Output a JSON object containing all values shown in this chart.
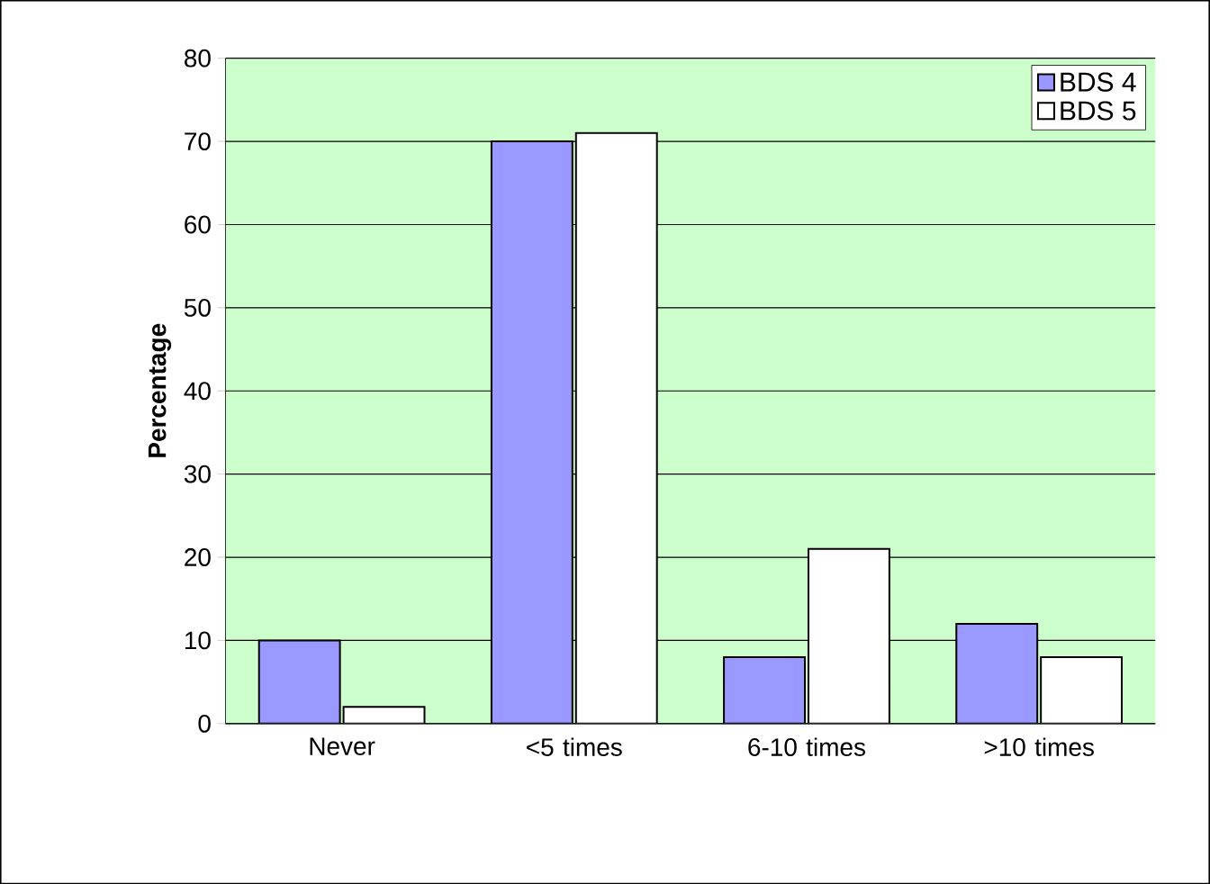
{
  "chart_data": {
    "type": "bar",
    "ylabel": "Percentage",
    "categories": [
      "Never",
      "<5 times",
      "6-10 times",
      ">10 times"
    ],
    "series": [
      {
        "name": "BDS 4",
        "color": "#9999ff",
        "values": [
          10,
          70,
          8,
          12
        ]
      },
      {
        "name": "BDS 5",
        "color": "#ffffff",
        "values": [
          2,
          71,
          21,
          8
        ]
      }
    ],
    "ylim": [
      0,
      80
    ],
    "yticks": [
      0,
      10,
      20,
      30,
      40,
      50,
      60,
      70,
      80
    ],
    "grid": "y",
    "legend": "top right"
  }
}
